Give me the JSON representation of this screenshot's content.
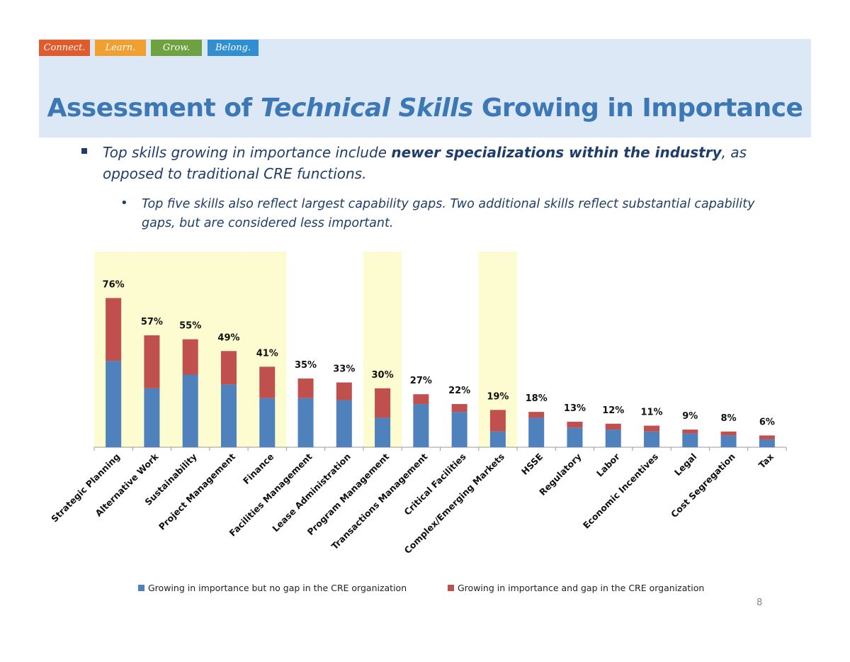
{
  "tags": [
    {
      "label": "Connect.",
      "color": "#e05a2b"
    },
    {
      "label": "Learn.",
      "color": "#f0a030"
    },
    {
      "label": "Grow.",
      "color": "#6ea240"
    },
    {
      "label": "Belong.",
      "color": "#2f8fd0"
    }
  ],
  "title": {
    "before": "Assessment of ",
    "italic": "Technical Skills",
    "after": " Growing in Importance"
  },
  "bullet1": {
    "before": "Top skills growing in importance include ",
    "bold": "newer specializations within the industry",
    "after": ", as opposed to traditional CRE functions."
  },
  "bullet2": {
    "mark": "•",
    "text": "Top five skills also reflect largest capability gaps. Two additional skills reflect substantial capability gaps, but are considered less important."
  },
  "page_number": "8",
  "colors": {
    "no_gap": "#4f81bd",
    "gap": "#c0504d",
    "highlight": "#fdfbd0",
    "title": "#3b78b5"
  },
  "chart_data": {
    "type": "bar",
    "stacked": true,
    "categories": [
      "Strategic Planning",
      "Alternative Work",
      "Sustainability",
      "Project Management",
      "Finance",
      "Facilities Management",
      "Lease Administration",
      "Program Management",
      "Transactions Management",
      "Critical Facilities",
      "Complex/Emerging Markets",
      "HSSE",
      "Regulatory",
      "Labor",
      "Economic Incentives",
      "Legal",
      "Cost Segregation",
      "Tax"
    ],
    "total_labels": [
      "76%",
      "57%",
      "55%",
      "49%",
      "41%",
      "35%",
      "33%",
      "30%",
      "27%",
      "22%",
      "19%",
      "18%",
      "13%",
      "12%",
      "11%",
      "9%",
      "8%",
      "6%"
    ],
    "series": [
      {
        "name": "Growing in importance but no gap in the CRE organization",
        "color": "#4f81bd",
        "values": [
          44,
          30,
          37,
          32,
          25,
          25,
          24,
          15,
          22,
          18,
          8,
          15,
          10,
          9,
          8,
          7,
          6,
          4
        ]
      },
      {
        "name": "Growing in importance and gap in the CRE organization",
        "color": "#c0504d",
        "values": [
          32,
          27,
          18,
          17,
          16,
          10,
          9,
          15,
          5,
          4,
          11,
          3,
          3,
          3,
          3,
          2,
          2,
          2
        ]
      }
    ],
    "ylim": [
      0,
      80
    ],
    "highlighted_categories": [
      "Strategic Planning",
      "Alternative Work",
      "Sustainability",
      "Project Management",
      "Finance",
      "Program Management",
      "Complex/Emerging Markets"
    ],
    "legend_position": "bottom"
  }
}
